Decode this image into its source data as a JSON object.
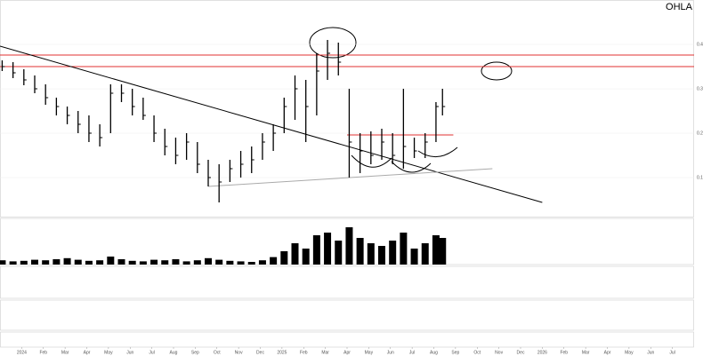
{
  "chart_data": {
    "type": "ohlc",
    "title": "OHLA",
    "color": "#000000",
    "x": [
      -0.9,
      -0.4,
      0.1,
      0.6,
      1.1,
      1.6,
      2.1,
      2.6,
      3.1,
      3.6,
      4.1,
      4.6,
      5.1,
      5.6,
      6.1,
      6.6,
      7.1,
      7.6,
      8.1,
      8.6,
      9.1,
      9.6,
      10.1,
      10.6,
      11.1,
      11.6,
      12.1,
      12.6,
      13.1,
      13.6,
      14.1,
      14.6,
      15.1,
      15.6,
      16.1,
      16.6,
      17.1,
      17.6,
      18.1,
      18.6,
      19.1,
      19.4
    ],
    "high": [
      0.364,
      0.36,
      0.344,
      0.33,
      0.31,
      0.28,
      0.26,
      0.25,
      0.24,
      0.22,
      0.31,
      0.31,
      0.3,
      0.28,
      0.24,
      0.21,
      0.19,
      0.2,
      0.18,
      0.14,
      0.13,
      0.14,
      0.16,
      0.17,
      0.2,
      0.22,
      0.28,
      0.33,
      0.32,
      0.38,
      0.41,
      0.404,
      0.3,
      0.2,
      0.204,
      0.21,
      0.2,
      0.3,
      0.19,
      0.2,
      0.27,
      0.3
    ],
    "low": [
      0.34,
      0.324,
      0.308,
      0.29,
      0.264,
      0.24,
      0.22,
      0.2,
      0.18,
      0.17,
      0.2,
      0.27,
      0.24,
      0.23,
      0.18,
      0.15,
      0.13,
      0.14,
      0.11,
      0.08,
      0.044,
      0.09,
      0.1,
      0.11,
      0.14,
      0.16,
      0.2,
      0.23,
      0.18,
      0.24,
      0.32,
      0.33,
      0.1,
      0.11,
      0.13,
      0.14,
      0.13,
      0.12,
      0.144,
      0.144,
      0.18,
      0.24
    ],
    "close": [
      0.35,
      0.336,
      0.32,
      0.3,
      0.28,
      0.26,
      0.24,
      0.22,
      0.2,
      0.19,
      0.29,
      0.29,
      0.26,
      0.24,
      0.2,
      0.17,
      0.15,
      0.18,
      0.13,
      0.1,
      0.09,
      0.12,
      0.13,
      0.14,
      0.18,
      0.2,
      0.26,
      0.3,
      0.26,
      0.34,
      0.38,
      0.36,
      0.18,
      0.16,
      0.15,
      0.18,
      0.15,
      0.17,
      0.16,
      0.18,
      0.26,
      0.26
    ],
    "xlim": [
      -1,
      31
    ],
    "xticks": [
      {
        "value": 0,
        "label": "2024"
      },
      {
        "value": 1,
        "label": "Feb"
      },
      {
        "value": 2,
        "label": "Mar"
      },
      {
        "value": 3,
        "label": "Apr"
      },
      {
        "value": 4,
        "label": "May"
      },
      {
        "value": 5,
        "label": "Jun"
      },
      {
        "value": 6,
        "label": "Jul"
      },
      {
        "value": 7,
        "label": "Aug"
      },
      {
        "value": 8,
        "label": "Sep"
      },
      {
        "value": 9,
        "label": "Oct"
      },
      {
        "value": 10,
        "label": "Nov"
      },
      {
        "value": 11,
        "label": "Dec"
      },
      {
        "value": 12,
        "label": "2025"
      },
      {
        "value": 13,
        "label": "Feb"
      },
      {
        "value": 14,
        "label": "Mar"
      },
      {
        "value": 15,
        "label": "Apr"
      },
      {
        "value": 16,
        "label": "May"
      },
      {
        "value": 17,
        "label": "Jun"
      },
      {
        "value": 18,
        "label": "Jul"
      },
      {
        "value": 19,
        "label": "Aug"
      },
      {
        "value": 20,
        "label": "Sep"
      },
      {
        "value": 21,
        "label": "Oct"
      },
      {
        "value": 22,
        "label": "Nov"
      },
      {
        "value": 23,
        "label": "Dec"
      },
      {
        "value": 24,
        "label": "2026"
      },
      {
        "value": 25,
        "label": "Feb"
      },
      {
        "value": 26,
        "label": "Mar"
      },
      {
        "value": 27,
        "label": "Apr"
      },
      {
        "value": 28,
        "label": "May"
      },
      {
        "value": 29,
        "label": "Jun"
      },
      {
        "value": 30,
        "label": "Jul"
      }
    ],
    "ylim": [
      0.01,
      0.49
    ],
    "yticks": [
      0.1,
      0.2,
      0.3,
      0.4
    ],
    "volume": {
      "color": "#000000",
      "ylim": [
        0,
        80
      ],
      "values": [
        8,
        6,
        7,
        9,
        8,
        10,
        12,
        9,
        7,
        8,
        15,
        10,
        7,
        6,
        9,
        8,
        10,
        6,
        8,
        12,
        9,
        7,
        6,
        5,
        8,
        14,
        25,
        40,
        30,
        55,
        60,
        45,
        70,
        50,
        40,
        35,
        45,
        60,
        30,
        40,
        55,
        50
      ]
    },
    "lines": [
      {
        "color": "#e03030",
        "x": [
          -1,
          31
        ],
        "y": [
          0.376,
          0.376
        ]
      },
      {
        "color": "#e03030",
        "x": [
          -1,
          31
        ],
        "y": [
          0.35,
          0.35
        ]
      },
      {
        "color": "#e03030",
        "x": [
          15,
          19.9
        ],
        "y": [
          0.196,
          0.196
        ]
      },
      {
        "color": "#000000",
        "x": [
          -1,
          24
        ],
        "y": [
          0.396,
          0.044
        ]
      },
      {
        "color": "#aaaaaa",
        "x": [
          8.6,
          21.7
        ],
        "y": [
          0.08,
          0.12
        ]
      }
    ]
  }
}
